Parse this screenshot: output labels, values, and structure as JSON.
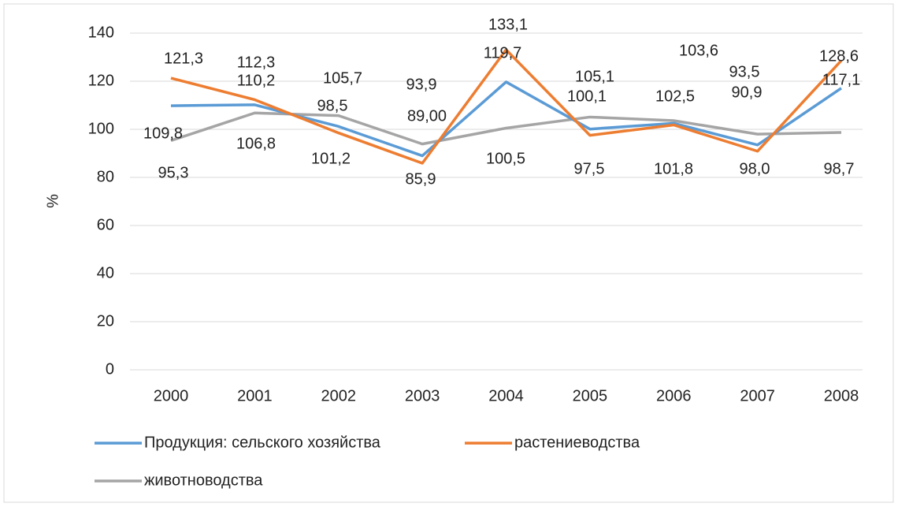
{
  "chart_data": {
    "type": "line",
    "y_label": "%",
    "categories": [
      "2000",
      "2001",
      "2002",
      "2003",
      "2004",
      "2005",
      "2006",
      "2007",
      "2008"
    ],
    "series": [
      {
        "name": "Продукция: сельского хозяйства",
        "color": "#5b9bd5",
        "values": [
          109.8,
          110.2,
          101.2,
          89.0,
          119.7,
          100.1,
          102.5,
          93.5,
          117.1
        ],
        "value_labels": [
          "109,8",
          "110,2",
          "101,2",
          "89,00",
          "119,7",
          "100,1",
          "102,5",
          "93,5",
          "117,1"
        ]
      },
      {
        "name": "растениеводства",
        "color": "#ed7d31",
        "values": [
          121.3,
          112.3,
          98.5,
          85.9,
          133.1,
          97.5,
          101.8,
          90.9,
          128.6
        ],
        "value_labels": [
          "121,3",
          "112,3",
          "98,5",
          "85,9",
          "133,1",
          "97,5",
          "101,8",
          "90,9",
          "128,6"
        ]
      },
      {
        "name": "животноводства",
        "color": "#a5a5a5",
        "values": [
          95.3,
          106.8,
          105.7,
          93.9,
          100.5,
          105.1,
          103.6,
          98.0,
          98.7
        ],
        "value_labels": [
          "95,3",
          "106,8",
          "105,7",
          "93,9",
          "100,5",
          "105,1",
          "103,6",
          "98,0",
          "98,7"
        ]
      }
    ],
    "ylim": [
      0,
      140
    ],
    "yticks": [
      0,
      20,
      40,
      60,
      80,
      100,
      120,
      140
    ],
    "grid": true
  }
}
